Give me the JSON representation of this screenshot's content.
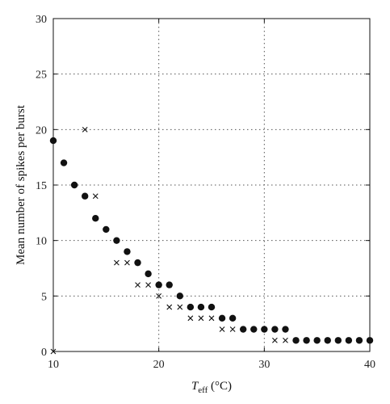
{
  "chart_data": {
    "type": "scatter",
    "title": "",
    "ylabel": "Mean number of spikes per burst",
    "xlabel_main": "T",
    "xlabel_sub": "eff",
    "xlabel_unit": " (°C)",
    "xlim": [
      10,
      40
    ],
    "ylim": [
      0,
      30
    ],
    "x_ticks": [
      10,
      20,
      30,
      40
    ],
    "y_ticks": [
      0,
      5,
      10,
      15,
      20,
      25,
      30
    ],
    "grid": true,
    "series": [
      {
        "marker": "dot",
        "points": [
          [
            10,
            19
          ],
          [
            11,
            17
          ],
          [
            12,
            15
          ],
          [
            13,
            14
          ],
          [
            14,
            12
          ],
          [
            15,
            11
          ],
          [
            16,
            10
          ],
          [
            17,
            9
          ],
          [
            18,
            8
          ],
          [
            19,
            7
          ],
          [
            20,
            6
          ],
          [
            21,
            6
          ],
          [
            22,
            5
          ],
          [
            23,
            4
          ],
          [
            24,
            4
          ],
          [
            25,
            4
          ],
          [
            26,
            3
          ],
          [
            27,
            3
          ],
          [
            28,
            2
          ],
          [
            29,
            2
          ],
          [
            30,
            2
          ],
          [
            31,
            2
          ],
          [
            32,
            2
          ],
          [
            33,
            1
          ],
          [
            34,
            1
          ],
          [
            35,
            1
          ],
          [
            36,
            1
          ],
          [
            37,
            1
          ],
          [
            38,
            1
          ],
          [
            39,
            1
          ],
          [
            40,
            1
          ]
        ]
      },
      {
        "marker": "cross",
        "points": [
          [
            10,
            0
          ],
          [
            13,
            20
          ],
          [
            14,
            14
          ],
          [
            16,
            8
          ],
          [
            17,
            8
          ],
          [
            18,
            6
          ],
          [
            19,
            6
          ],
          [
            20,
            5
          ],
          [
            21,
            4
          ],
          [
            22,
            4
          ],
          [
            23,
            3
          ],
          [
            24,
            3
          ],
          [
            25,
            3
          ],
          [
            26,
            2
          ],
          [
            27,
            2
          ],
          [
            31,
            1
          ],
          [
            32,
            1
          ]
        ]
      }
    ]
  }
}
